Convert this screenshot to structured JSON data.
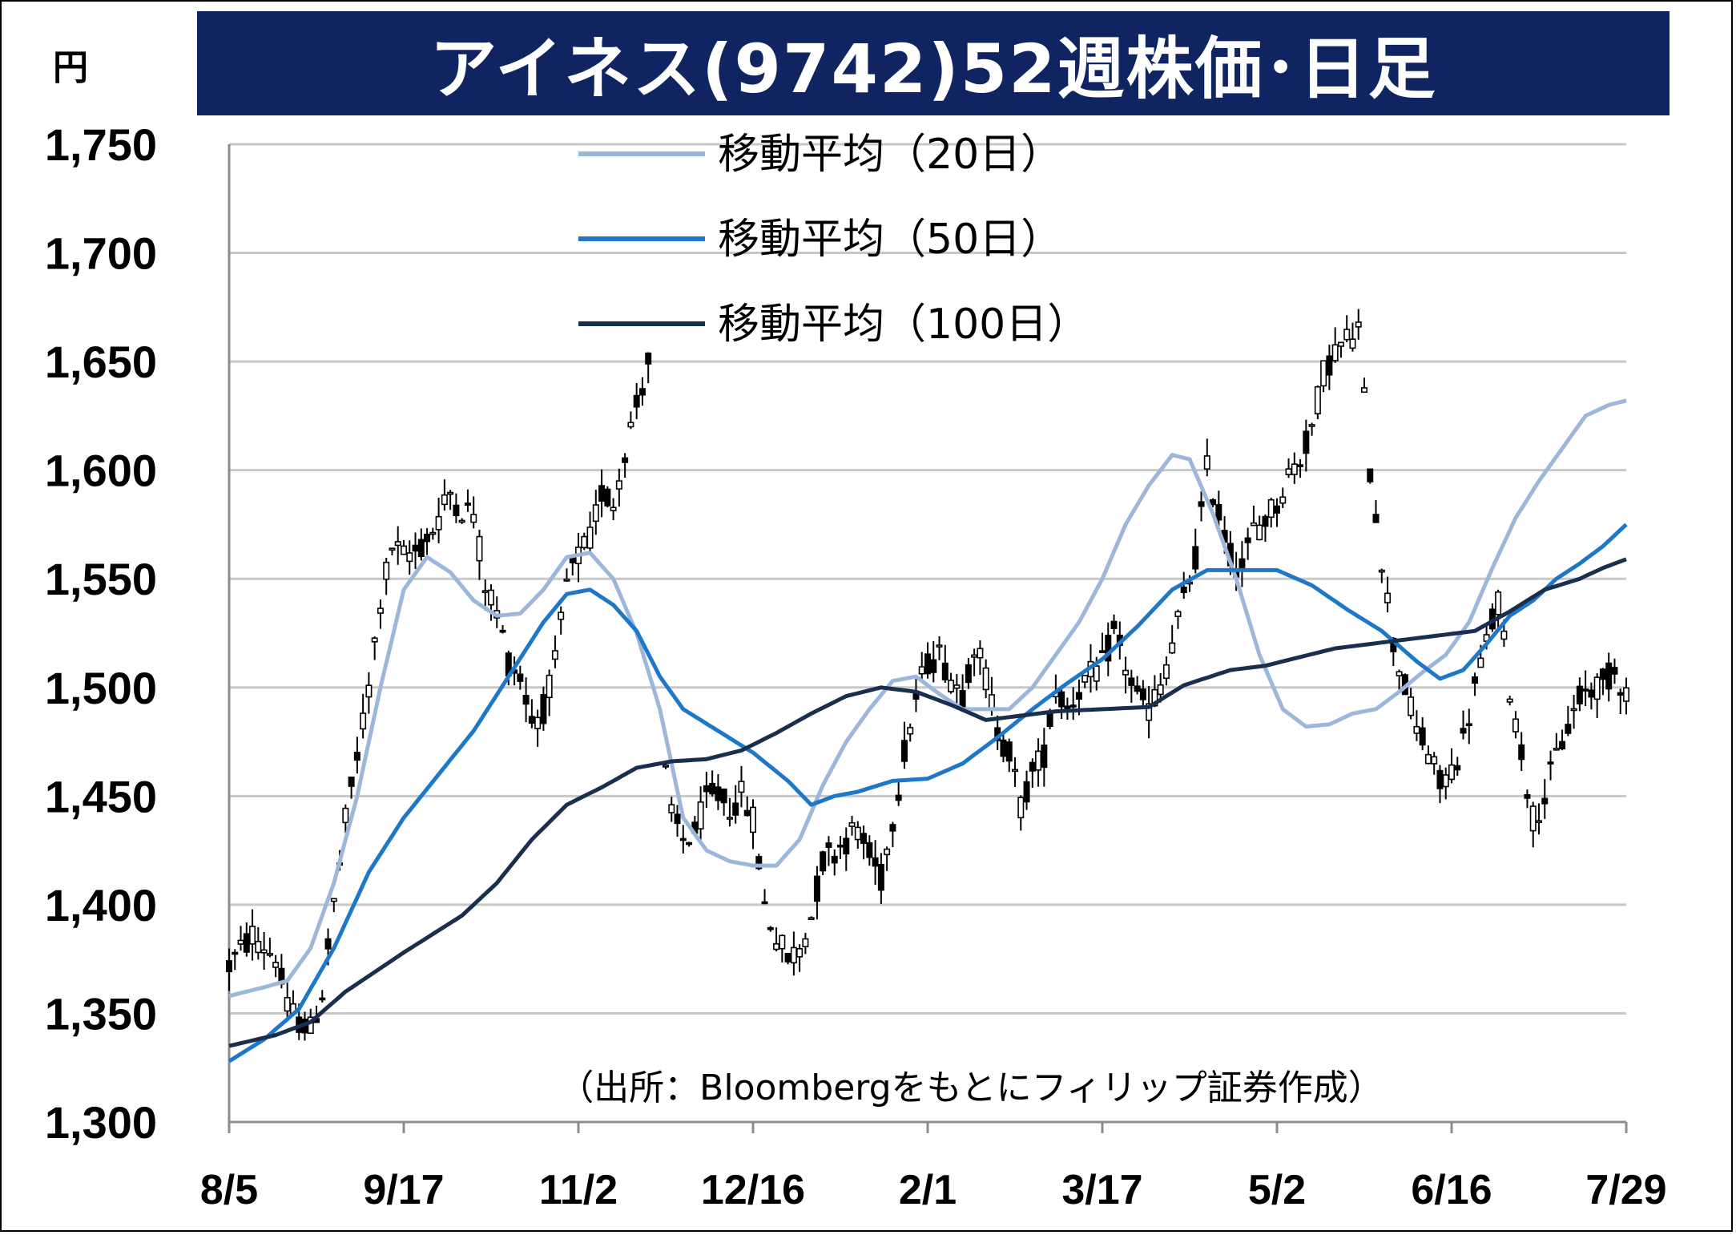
{
  "title": "アイネス(9742)52週株価･日足",
  "unit": "円",
  "source": "（出所：Bloombergをもとにフィリップ証券作成）",
  "chart_data": {
    "type": "candlestick",
    "title": "アイネス(9742)52週株価･日足",
    "ylim": [
      1300,
      1750
    ],
    "yticks": [
      1300,
      1350,
      1400,
      1450,
      1500,
      1550,
      1600,
      1650,
      1700,
      1750
    ],
    "ytick_labels": [
      "1,300",
      "1,350",
      "1,400",
      "1,450",
      "1,500",
      "1,550",
      "1,600",
      "1,650",
      "1,700",
      "1,750"
    ],
    "xticks": [
      {
        "label": "8/5",
        "index": 0
      },
      {
        "label": "9/17",
        "index": 30
      },
      {
        "label": "11/2",
        "index": 60
      },
      {
        "label": "12/16",
        "index": 90
      },
      {
        "label": "2/1",
        "index": 120
      },
      {
        "label": "3/17",
        "index": 150
      },
      {
        "label": "5/2",
        "index": 180
      },
      {
        "label": "6/16",
        "index": 210
      },
      {
        "label": "7/29",
        "index": 240
      }
    ],
    "n_days": 241,
    "grid": true,
    "series": [
      {
        "name": "移動平均（20日）",
        "color": "#9db7dc",
        "anchors": [
          [
            0,
            1358
          ],
          [
            6,
            1362
          ],
          [
            10,
            1365
          ],
          [
            14,
            1380
          ],
          [
            18,
            1410
          ],
          [
            22,
            1450
          ],
          [
            26,
            1500
          ],
          [
            30,
            1545
          ],
          [
            34,
            1560
          ],
          [
            38,
            1553
          ],
          [
            42,
            1540
          ],
          [
            46,
            1533
          ],
          [
            50,
            1534
          ],
          [
            54,
            1545
          ],
          [
            58,
            1560
          ],
          [
            62,
            1562
          ],
          [
            66,
            1550
          ],
          [
            70,
            1525
          ],
          [
            74,
            1490
          ],
          [
            78,
            1440
          ],
          [
            82,
            1425
          ],
          [
            86,
            1420
          ],
          [
            90,
            1418
          ],
          [
            94,
            1418
          ],
          [
            98,
            1430
          ],
          [
            102,
            1455
          ],
          [
            106,
            1475
          ],
          [
            110,
            1490
          ],
          [
            114,
            1503
          ],
          [
            118,
            1505
          ],
          [
            122,
            1497
          ],
          [
            126,
            1490
          ],
          [
            130,
            1490
          ],
          [
            134,
            1490
          ],
          [
            138,
            1500
          ],
          [
            142,
            1515
          ],
          [
            146,
            1530
          ],
          [
            150,
            1550
          ],
          [
            154,
            1575
          ],
          [
            158,
            1593
          ],
          [
            162,
            1607
          ],
          [
            165,
            1605
          ],
          [
            169,
            1580
          ],
          [
            173,
            1550
          ],
          [
            177,
            1515
          ],
          [
            181,
            1490
          ],
          [
            185,
            1482
          ],
          [
            189,
            1483
          ],
          [
            193,
            1488
          ],
          [
            197,
            1490
          ],
          [
            201,
            1498
          ],
          [
            205,
            1507
          ],
          [
            209,
            1515
          ],
          [
            213,
            1530
          ],
          [
            217,
            1555
          ],
          [
            221,
            1578
          ],
          [
            225,
            1595
          ],
          [
            229,
            1610
          ],
          [
            233,
            1625
          ],
          [
            237,
            1630
          ],
          [
            240,
            1632
          ]
        ]
      },
      {
        "name": "移動平均（50日）",
        "color": "#1f77c8",
        "anchors": [
          [
            0,
            1328
          ],
          [
            6,
            1338
          ],
          [
            12,
            1352
          ],
          [
            18,
            1380
          ],
          [
            24,
            1415
          ],
          [
            30,
            1440
          ],
          [
            36,
            1460
          ],
          [
            42,
            1480
          ],
          [
            48,
            1505
          ],
          [
            54,
            1530
          ],
          [
            58,
            1543
          ],
          [
            62,
            1545
          ],
          [
            66,
            1538
          ],
          [
            70,
            1526
          ],
          [
            74,
            1505
          ],
          [
            78,
            1490
          ],
          [
            84,
            1480
          ],
          [
            90,
            1470
          ],
          [
            96,
            1457
          ],
          [
            100,
            1446
          ],
          [
            104,
            1450
          ],
          [
            108,
            1452
          ],
          [
            114,
            1457
          ],
          [
            120,
            1458
          ],
          [
            126,
            1465
          ],
          [
            132,
            1477
          ],
          [
            138,
            1490
          ],
          [
            144,
            1502
          ],
          [
            150,
            1513
          ],
          [
            156,
            1528
          ],
          [
            162,
            1545
          ],
          [
            168,
            1554
          ],
          [
            174,
            1554
          ],
          [
            180,
            1554
          ],
          [
            186,
            1547
          ],
          [
            192,
            1536
          ],
          [
            198,
            1526
          ],
          [
            204,
            1512
          ],
          [
            208,
            1504
          ],
          [
            212,
            1508
          ],
          [
            216,
            1520
          ],
          [
            220,
            1533
          ],
          [
            224,
            1540
          ],
          [
            228,
            1550
          ],
          [
            232,
            1557
          ],
          [
            236,
            1565
          ],
          [
            240,
            1575
          ]
        ]
      },
      {
        "name": "移動平均（100日）",
        "color": "#1a2e50",
        "anchors": [
          [
            0,
            1335
          ],
          [
            8,
            1340
          ],
          [
            14,
            1346
          ],
          [
            20,
            1360
          ],
          [
            30,
            1378
          ],
          [
            40,
            1395
          ],
          [
            46,
            1410
          ],
          [
            52,
            1430
          ],
          [
            58,
            1446
          ],
          [
            64,
            1454
          ],
          [
            70,
            1463
          ],
          [
            76,
            1466
          ],
          [
            82,
            1467
          ],
          [
            88,
            1471
          ],
          [
            94,
            1479
          ],
          [
            100,
            1488
          ],
          [
            106,
            1496
          ],
          [
            112,
            1500
          ],
          [
            118,
            1498
          ],
          [
            124,
            1492
          ],
          [
            130,
            1485
          ],
          [
            136,
            1487
          ],
          [
            142,
            1489
          ],
          [
            150,
            1490
          ],
          [
            158,
            1491
          ],
          [
            164,
            1501
          ],
          [
            172,
            1508
          ],
          [
            178,
            1510
          ],
          [
            184,
            1514
          ],
          [
            190,
            1518
          ],
          [
            196,
            1520
          ],
          [
            202,
            1522
          ],
          [
            208,
            1524
          ],
          [
            214,
            1526
          ],
          [
            220,
            1535
          ],
          [
            226,
            1545
          ],
          [
            232,
            1550
          ],
          [
            236,
            1555
          ],
          [
            240,
            1559
          ]
        ]
      }
    ],
    "candle_anchors": [
      [
        0,
        1372
      ],
      [
        4,
        1386
      ],
      [
        8,
        1376
      ],
      [
        10,
        1352
      ],
      [
        14,
        1342
      ],
      [
        16,
        1360
      ],
      [
        18,
        1400
      ],
      [
        20,
        1438
      ],
      [
        22,
        1468
      ],
      [
        24,
        1500
      ],
      [
        26,
        1540
      ],
      [
        28,
        1565
      ],
      [
        30,
        1560
      ],
      [
        32,
        1563
      ],
      [
        34,
        1568
      ],
      [
        36,
        1578
      ],
      [
        38,
        1590
      ],
      [
        40,
        1582
      ],
      [
        42,
        1580
      ],
      [
        44,
        1548
      ],
      [
        46,
        1535
      ],
      [
        48,
        1512
      ],
      [
        50,
        1505
      ],
      [
        52,
        1485
      ],
      [
        54,
        1490
      ],
      [
        56,
        1510
      ],
      [
        58,
        1548
      ],
      [
        60,
        1560
      ],
      [
        62,
        1568
      ],
      [
        64,
        1590
      ],
      [
        66,
        1585
      ],
      [
        68,
        1610
      ],
      [
        70,
        1630
      ],
      [
        72,
        1650
      ],
      [
        73,
        1655
      ],
      [
        74,
        1480
      ],
      [
        76,
        1440
      ],
      [
        78,
        1430
      ],
      [
        80,
        1433
      ],
      [
        82,
        1448
      ],
      [
        84,
        1450
      ],
      [
        86,
        1445
      ],
      [
        88,
        1450
      ],
      [
        90,
        1440
      ],
      [
        92,
        1400
      ],
      [
        94,
        1385
      ],
      [
        96,
        1375
      ],
      [
        98,
        1380
      ],
      [
        100,
        1395
      ],
      [
        102,
        1420
      ],
      [
        104,
        1425
      ],
      [
        106,
        1430
      ],
      [
        108,
        1435
      ],
      [
        110,
        1422
      ],
      [
        112,
        1412
      ],
      [
        114,
        1440
      ],
      [
        116,
        1470
      ],
      [
        118,
        1495
      ],
      [
        120,
        1512
      ],
      [
        122,
        1515
      ],
      [
        124,
        1505
      ],
      [
        126,
        1498
      ],
      [
        128,
        1520
      ],
      [
        130,
        1505
      ],
      [
        132,
        1480
      ],
      [
        134,
        1470
      ],
      [
        136,
        1445
      ],
      [
        138,
        1460
      ],
      [
        140,
        1470
      ],
      [
        142,
        1500
      ],
      [
        144,
        1490
      ],
      [
        146,
        1500
      ],
      [
        148,
        1505
      ],
      [
        150,
        1510
      ],
      [
        152,
        1525
      ],
      [
        154,
        1510
      ],
      [
        156,
        1495
      ],
      [
        158,
        1490
      ],
      [
        160,
        1500
      ],
      [
        162,
        1520
      ],
      [
        164,
        1540
      ],
      [
        166,
        1560
      ],
      [
        168,
        1600
      ],
      [
        170,
        1580
      ],
      [
        172,
        1560
      ],
      [
        174,
        1555
      ],
      [
        176,
        1572
      ],
      [
        178,
        1578
      ],
      [
        180,
        1585
      ],
      [
        182,
        1598
      ],
      [
        184,
        1605
      ],
      [
        186,
        1620
      ],
      [
        188,
        1645
      ],
      [
        190,
        1655
      ],
      [
        192,
        1660
      ],
      [
        194,
        1665
      ],
      [
        196,
        1600
      ],
      [
        198,
        1560
      ],
      [
        200,
        1520
      ],
      [
        202,
        1500
      ],
      [
        204,
        1480
      ],
      [
        206,
        1470
      ],
      [
        208,
        1455
      ],
      [
        210,
        1462
      ],
      [
        212,
        1475
      ],
      [
        214,
        1500
      ],
      [
        216,
        1520
      ],
      [
        218,
        1540
      ],
      [
        220,
        1500
      ],
      [
        222,
        1470
      ],
      [
        224,
        1440
      ],
      [
        226,
        1450
      ],
      [
        228,
        1468
      ],
      [
        230,
        1482
      ],
      [
        232,
        1495
      ],
      [
        234,
        1500
      ],
      [
        236,
        1502
      ],
      [
        238,
        1508
      ],
      [
        240,
        1498
      ]
    ]
  },
  "legend": [
    {
      "label": "移動平均（20日）",
      "color": "#9db7dc"
    },
    {
      "label": "移動平均（50日）",
      "color": "#1f77c8"
    },
    {
      "label": "移動平均（100日）",
      "color": "#1a2e50"
    }
  ]
}
